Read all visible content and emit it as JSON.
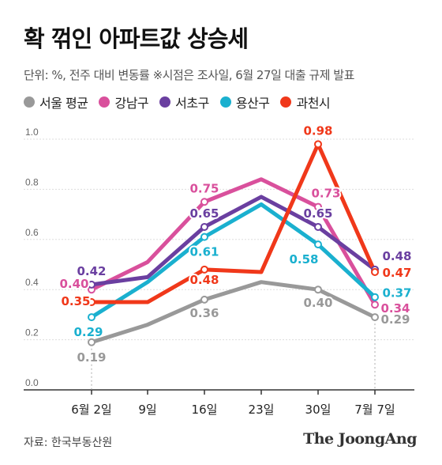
{
  "header": {
    "title": "확 꺾인 아파트값 상승세",
    "subtitle": "단위: %, 전주 대비 변동률   ※시점은 조사일, 6월 27일 대출 규제 발표"
  },
  "footer": {
    "source": "자료: 한국부동산원",
    "brand": "The JoongAng"
  },
  "chart_data": {
    "type": "line",
    "categories": [
      "6월 2일",
      "9일",
      "16일",
      "23일",
      "30일",
      "7월 7일"
    ],
    "ylim": [
      0,
      1.0
    ],
    "yticks": [
      "0.0",
      "0.2",
      "0.4",
      "0.6",
      "0.8",
      "1.0"
    ],
    "grid": true,
    "legend_position": "top-left",
    "series": [
      {
        "name": "서울 평균",
        "color": "#999999",
        "values": [
          0.19,
          0.26,
          0.36,
          0.43,
          0.4,
          0.29
        ],
        "labels": [
          "0.19",
          null,
          "0.36",
          null,
          "0.40",
          "0.29"
        ]
      },
      {
        "name": "강남구",
        "color": "#d9509c",
        "values": [
          0.4,
          0.51,
          0.75,
          0.84,
          0.73,
          0.34
        ],
        "labels": [
          "0.40",
          null,
          "0.75",
          null,
          "0.73",
          "0.34"
        ]
      },
      {
        "name": "서초구",
        "color": "#6a3fa0",
        "values": [
          0.42,
          0.45,
          0.65,
          0.77,
          0.65,
          0.48
        ],
        "labels": [
          "0.42",
          null,
          "0.65",
          null,
          "0.65",
          "0.48"
        ]
      },
      {
        "name": "용산구",
        "color": "#1ab0cf",
        "values": [
          0.29,
          0.43,
          0.61,
          0.74,
          0.58,
          0.37
        ],
        "labels": [
          "0.29",
          null,
          "0.61",
          null,
          "0.58",
          "0.37"
        ]
      },
      {
        "name": "과천시",
        "color": "#f0381a",
        "values": [
          0.35,
          0.35,
          0.48,
          0.47,
          0.98,
          0.47
        ],
        "labels": [
          "0.35",
          null,
          "0.48",
          null,
          "0.98",
          "0.47"
        ]
      }
    ]
  }
}
